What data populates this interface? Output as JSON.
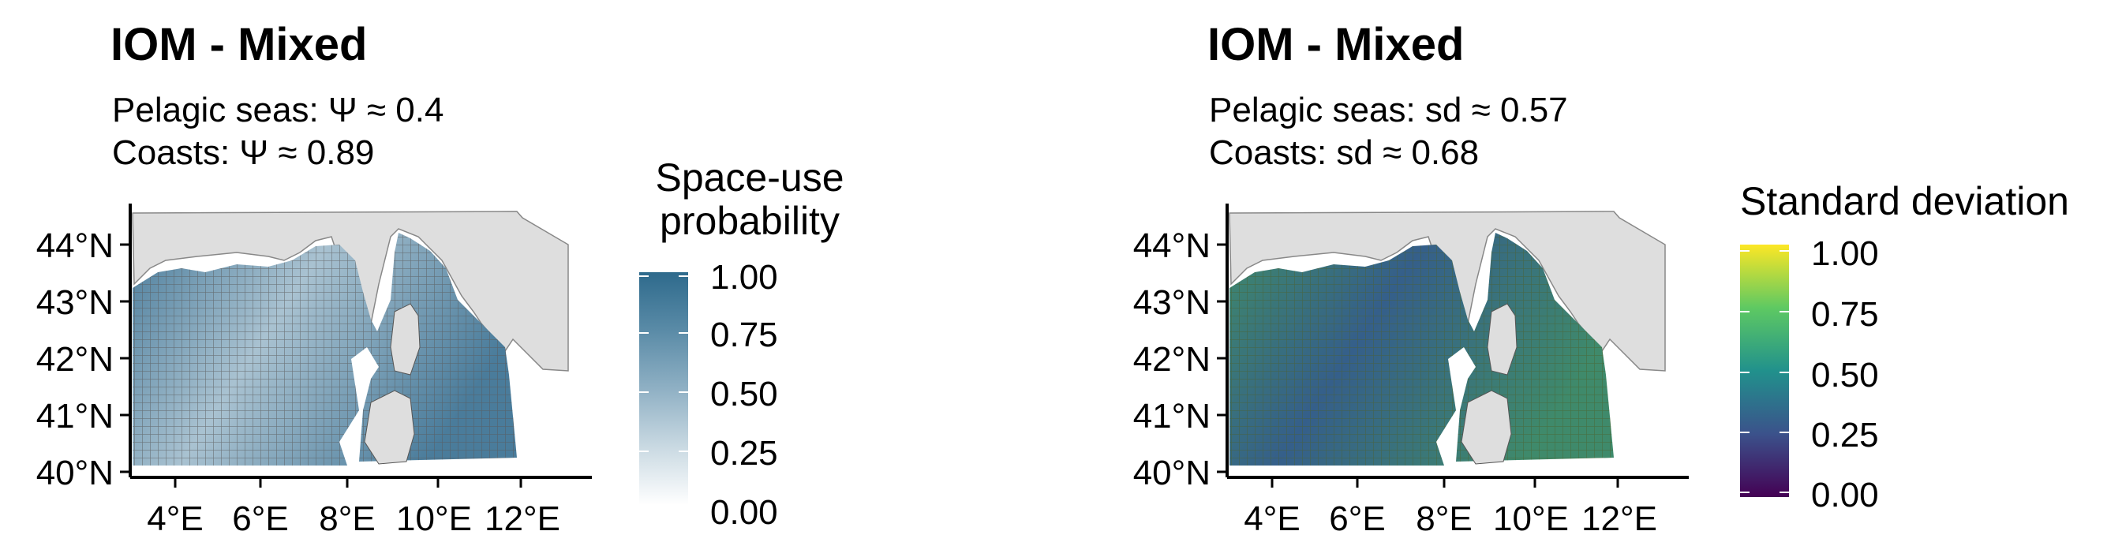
{
  "panels": [
    {
      "title": "IOM - Mixed",
      "subtitle_line1": "Pelagic seas: Ψ ≈ 0.4",
      "subtitle_line2": " Coasts: Ψ ≈ 0.89",
      "legend": {
        "title_line1": "Space-use",
        "title_line2": "probability",
        "ticks": [
          "1.00",
          "0.75",
          "0.50",
          "0.25",
          "0.00"
        ],
        "gradient": [
          "#ffffff",
          "#c9d9e2",
          "#8fb0c4",
          "#5a8ba7",
          "#2e6a8c"
        ]
      },
      "map_colors": {
        "sea": "#4a7c9b",
        "offshore": "#a9c2d1",
        "land": "#dedede",
        "grid": "#6b6b6b"
      }
    },
    {
      "title": "IOM - Mixed",
      "subtitle_line1": "Pelagic seas: sd ≈ 0.57",
      "subtitle_line2": " Coasts: sd ≈ 0.68",
      "legend": {
        "title_line1": "Standard deviation",
        "ticks": [
          "1.00",
          "0.75",
          "0.50",
          "0.25",
          "0.00"
        ],
        "gradient": [
          "#440154",
          "#3b528b",
          "#21918c",
          "#5ec962",
          "#fde725"
        ]
      },
      "map_colors": {
        "sea": "#3f8a6b",
        "offshore": "#355f8a",
        "land": "#dedede",
        "grid": "#5a6a3a"
      }
    }
  ],
  "axes": {
    "y_ticks": [
      "44°N",
      "43°N",
      "42°N",
      "41°N",
      "40°N"
    ],
    "x_ticks": [
      "4°E",
      "6°E",
      "8°E",
      "10°E",
      "12°E"
    ]
  }
}
